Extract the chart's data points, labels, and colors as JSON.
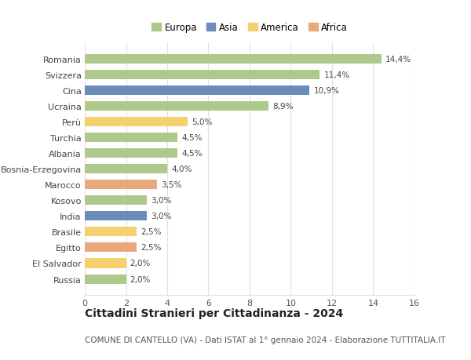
{
  "categories": [
    "Russia",
    "El Salvador",
    "Egitto",
    "Brasile",
    "India",
    "Kosovo",
    "Marocco",
    "Bosnia-Erzegovina",
    "Albania",
    "Turchia",
    "Perù",
    "Ucraina",
    "Cina",
    "Svizzera",
    "Romania"
  ],
  "values": [
    2.0,
    2.0,
    2.5,
    2.5,
    3.0,
    3.0,
    3.5,
    4.0,
    4.5,
    4.5,
    5.0,
    8.9,
    10.9,
    11.4,
    14.4
  ],
  "labels": [
    "2,0%",
    "2,0%",
    "2,5%",
    "2,5%",
    "3,0%",
    "3,0%",
    "3,5%",
    "4,0%",
    "4,5%",
    "4,5%",
    "5,0%",
    "8,9%",
    "10,9%",
    "11,4%",
    "14,4%"
  ],
  "continents": [
    "Europa",
    "America",
    "Africa",
    "America",
    "Asia",
    "Europa",
    "Africa",
    "Europa",
    "Europa",
    "Europa",
    "America",
    "Europa",
    "Asia",
    "Europa",
    "Europa"
  ],
  "continent_colors": {
    "Europa": "#aec98a",
    "Asia": "#6b8cba",
    "America": "#f5d16e",
    "Africa": "#e8a87c"
  },
  "legend_order": [
    "Europa",
    "Asia",
    "America",
    "Africa"
  ],
  "title": "Cittadini Stranieri per Cittadinanza - 2024",
  "subtitle": "COMUNE DI CANTELLO (VA) - Dati ISTAT al 1° gennaio 2024 - Elaborazione TUTTITALIA.IT",
  "xlim": [
    0,
    16
  ],
  "xticks": [
    0,
    2,
    4,
    6,
    8,
    10,
    12,
    14,
    16
  ],
  "background_color": "#ffffff",
  "grid_color": "#e0e0e0",
  "bar_height": 0.6,
  "title_fontsize": 10,
  "subtitle_fontsize": 7.5,
  "label_fontsize": 7.5,
  "tick_fontsize": 8,
  "legend_fontsize": 8.5
}
